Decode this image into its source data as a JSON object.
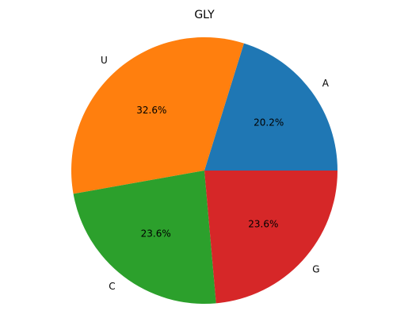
{
  "chart_data": {
    "type": "pie",
    "title": "GLY",
    "slices": [
      {
        "label": "A",
        "value": 20.2,
        "pct_label": "20.2%",
        "color": "#1f77b4"
      },
      {
        "label": "U",
        "value": 32.6,
        "pct_label": "32.6%",
        "color": "#ff7f0e"
      },
      {
        "label": "C",
        "value": 23.6,
        "pct_label": "23.6%",
        "color": "#2ca02c"
      },
      {
        "label": "G",
        "value": 23.6,
        "pct_label": "23.6%",
        "color": "#d62728"
      }
    ],
    "start_angle": 0,
    "direction": "counterclockwise",
    "legend": "none"
  }
}
